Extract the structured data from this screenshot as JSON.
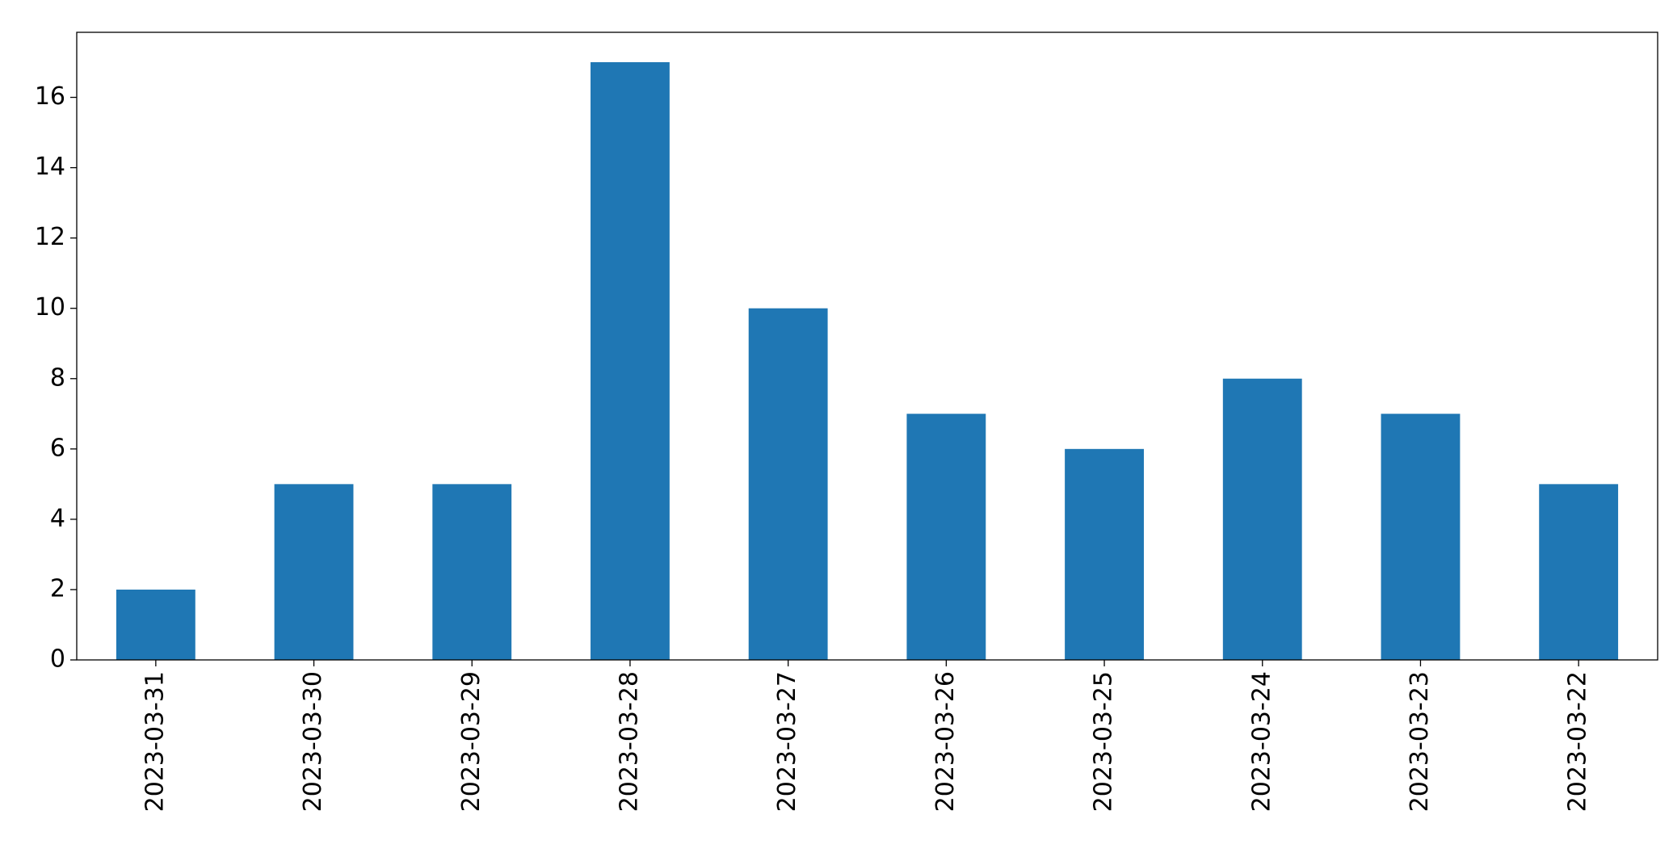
{
  "chart_data": {
    "type": "bar",
    "categories": [
      "2023-03-31",
      "2023-03-30",
      "2023-03-29",
      "2023-03-28",
      "2023-03-27",
      "2023-03-26",
      "2023-03-25",
      "2023-03-24",
      "2023-03-23",
      "2023-03-22"
    ],
    "values": [
      2,
      5,
      5,
      17,
      10,
      7,
      6,
      8,
      7,
      5
    ],
    "color": "#1f77b4",
    "ylim": [
      0,
      17.85
    ],
    "yticks": [
      0,
      2,
      4,
      6,
      8,
      10,
      12,
      14,
      16
    ],
    "grid": false
  }
}
